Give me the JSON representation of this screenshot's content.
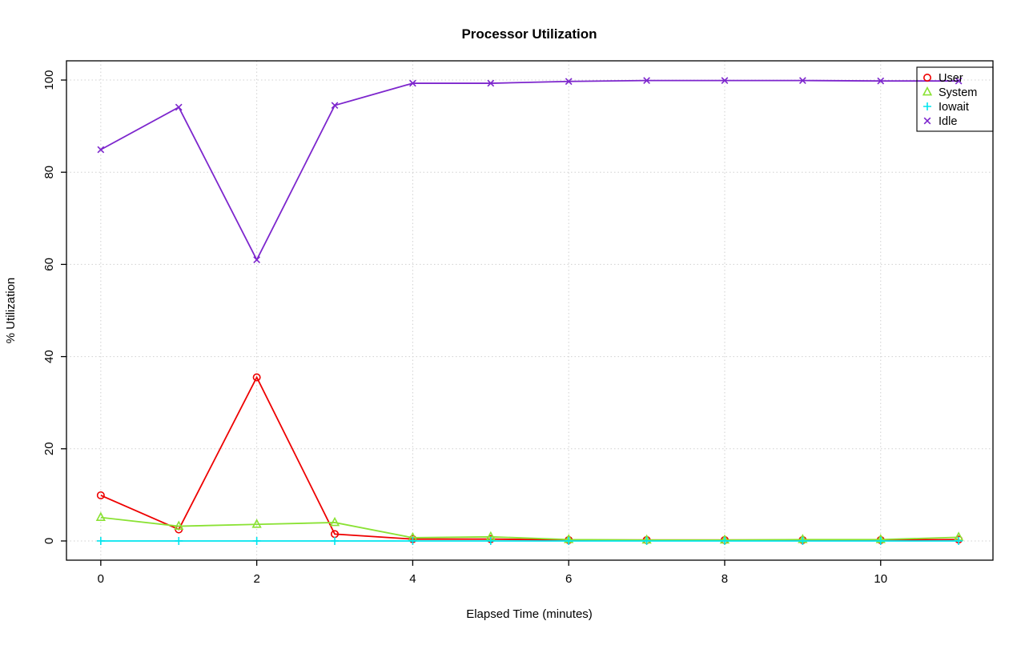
{
  "chart_data": {
    "type": "line",
    "title": "Processor Utilization",
    "xlabel": "Elapsed Time (minutes)",
    "ylabel": "% Utilization",
    "x": [
      0,
      1,
      2,
      3,
      4,
      5,
      6,
      7,
      8,
      9,
      10,
      11
    ],
    "xlim": [
      -0.44,
      11.44
    ],
    "ylim": [
      -4.17,
      104.17
    ],
    "xticks": [
      0,
      2,
      4,
      6,
      8,
      10
    ],
    "yticks": [
      0,
      20,
      40,
      60,
      80,
      100
    ],
    "grid": "dotted",
    "grid_color": "#d0d0d0",
    "legend_position": "top-right",
    "legend_entries": [
      "User",
      "System",
      "Iowait",
      "Idle"
    ],
    "series": [
      {
        "name": "User",
        "color": "#ee0000",
        "marker": "circle",
        "values": [
          9.9,
          2.5,
          35.5,
          1.5,
          0.4,
          0.4,
          0.2,
          0.2,
          0.2,
          0.2,
          0.2,
          0.3
        ]
      },
      {
        "name": "System",
        "color": "#8ae234",
        "marker": "triangle",
        "values": [
          5.1,
          3.2,
          3.6,
          4.0,
          0.7,
          0.9,
          0.3,
          0.2,
          0.2,
          0.3,
          0.3,
          0.8
        ]
      },
      {
        "name": "Iowait",
        "color": "#00e5ee",
        "marker": "plus",
        "values": [
          0,
          0,
          0,
          0,
          0,
          0,
          0,
          0,
          0,
          0,
          0,
          0
        ]
      },
      {
        "name": "Idle",
        "color": "#7d26cd",
        "marker": "x",
        "values": [
          84.9,
          94.1,
          61.0,
          94.5,
          99.3,
          99.3,
          99.7,
          99.9,
          99.9,
          99.9,
          99.8,
          99.8
        ]
      }
    ]
  }
}
